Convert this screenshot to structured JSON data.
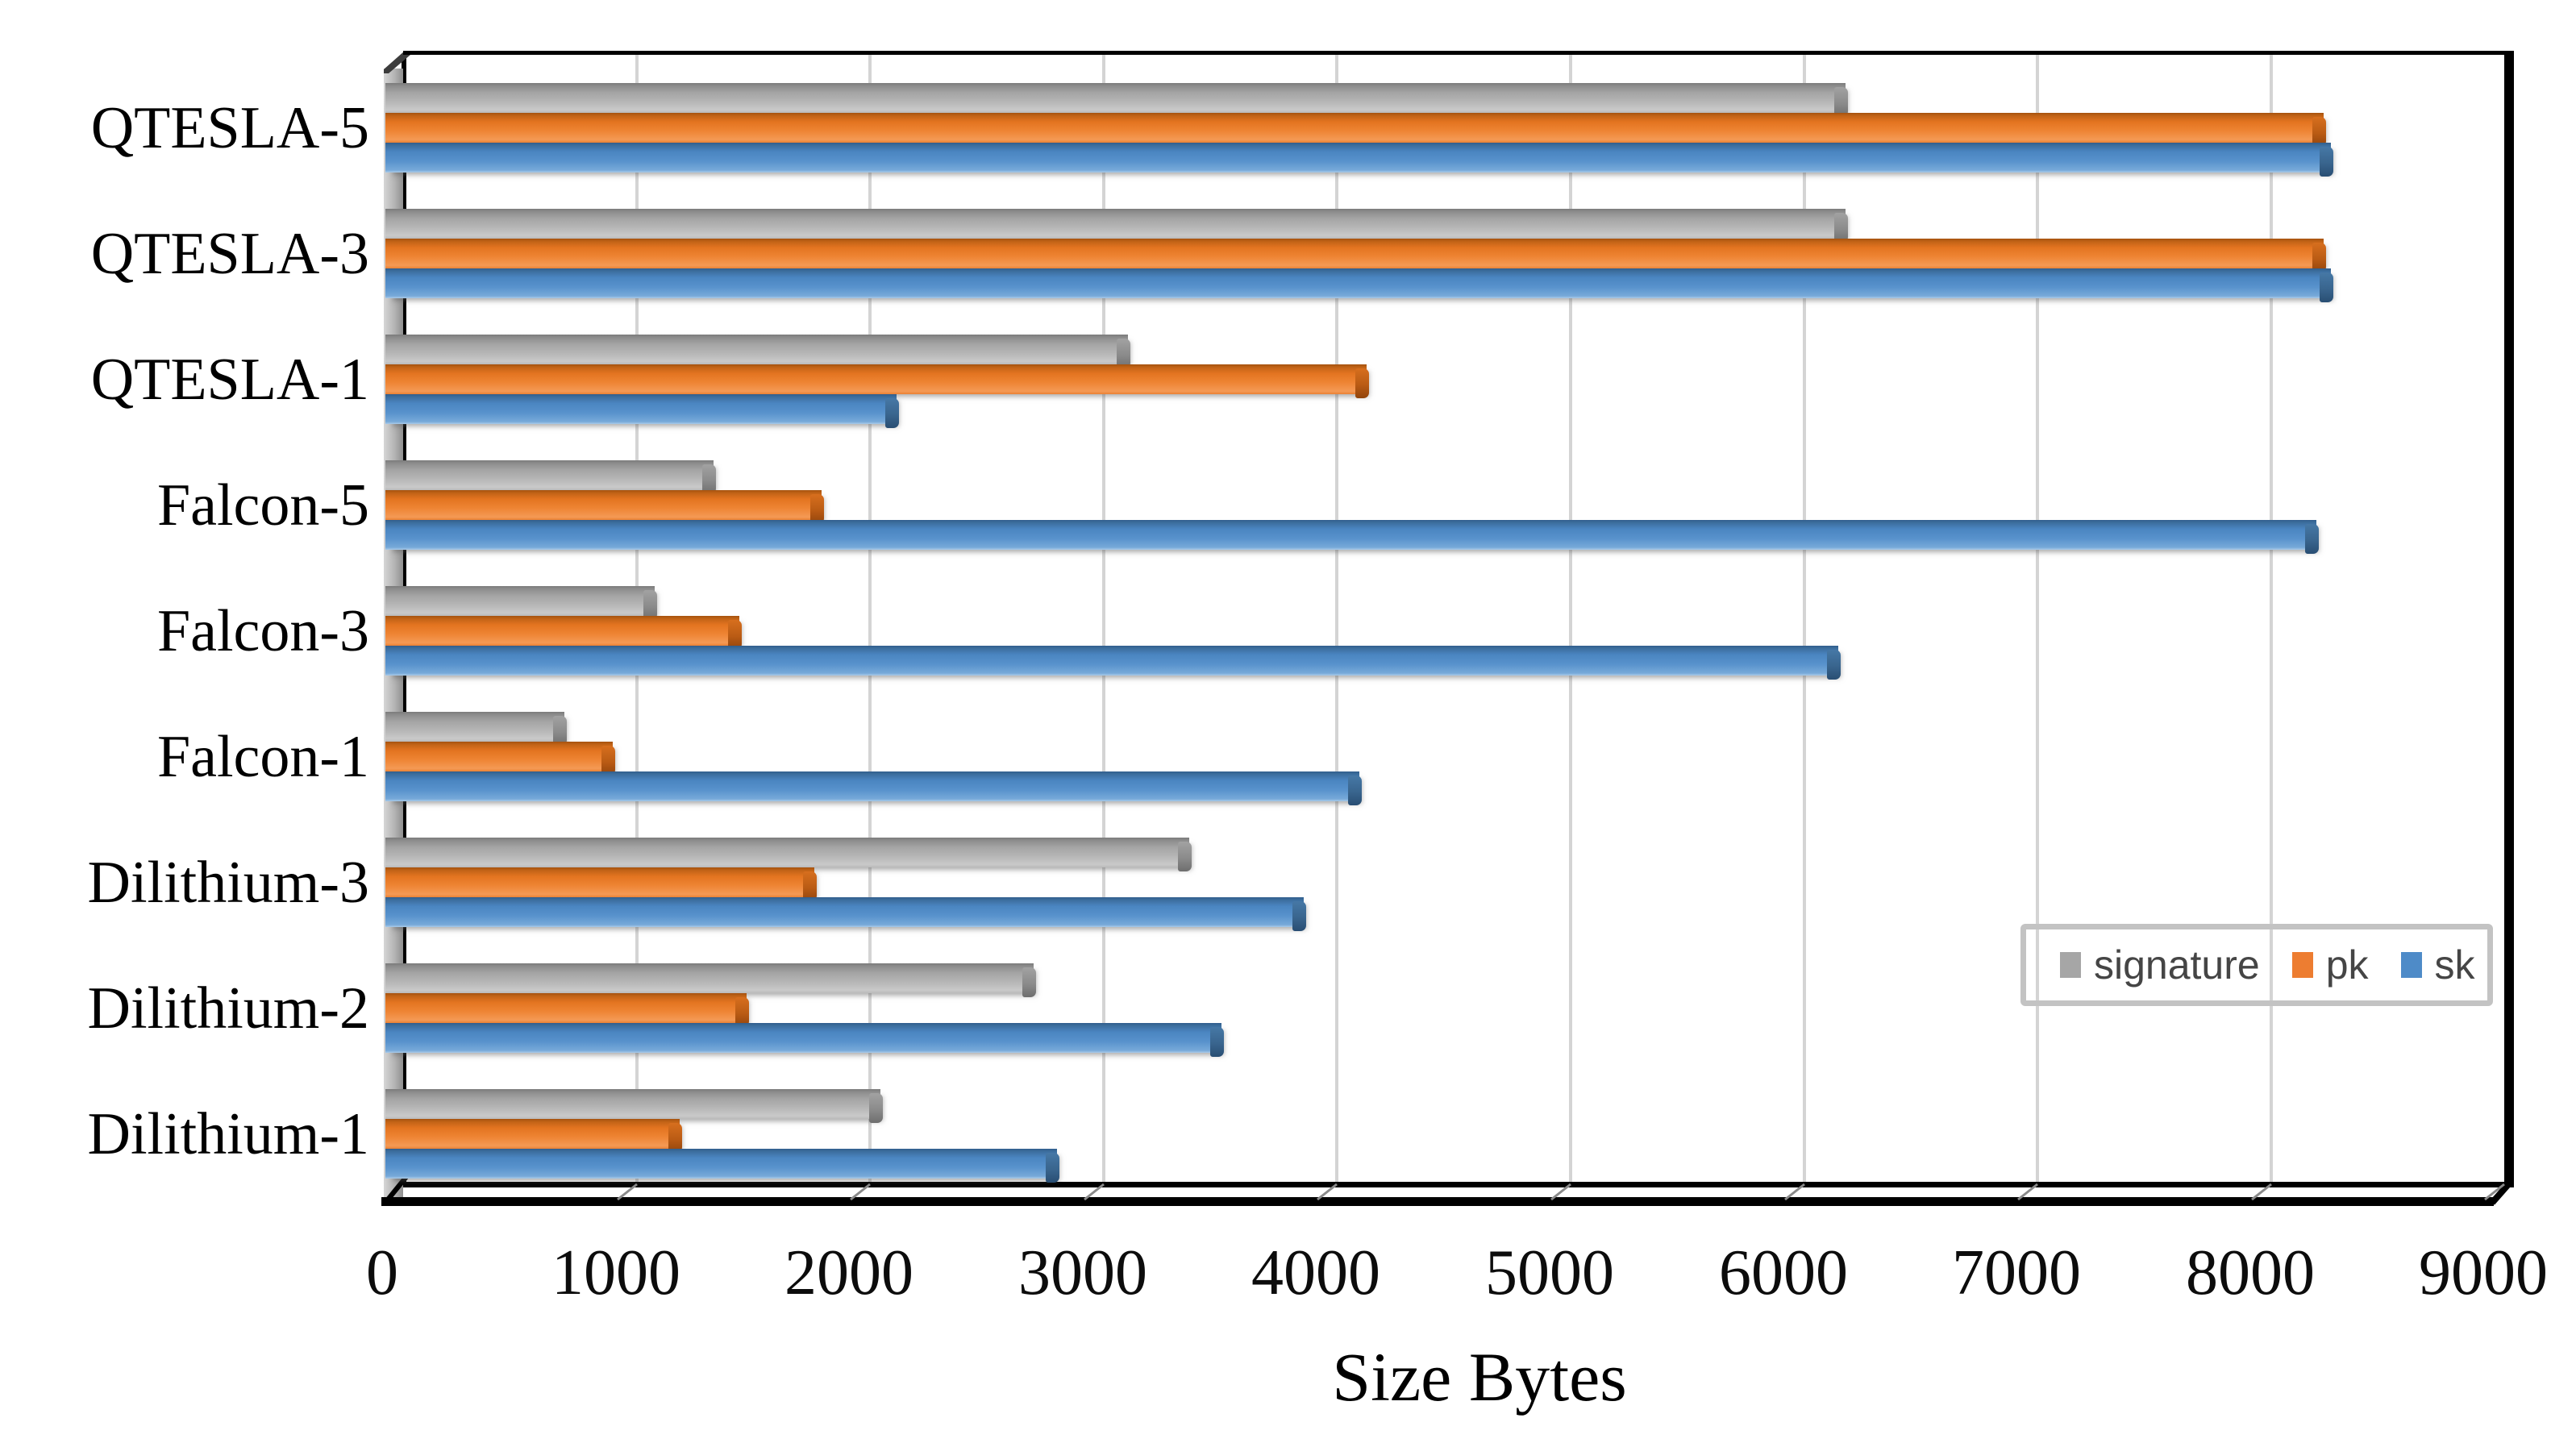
{
  "chart_data": {
    "type": "bar",
    "orientation": "horizontal",
    "title": "",
    "xlabel": "Size Bytes",
    "ylabel": "",
    "categories": [
      "QTESLA-5",
      "QTESLA-3",
      "QTESLA-1",
      "Falcon-5",
      "Falcon-3",
      "Falcon-1",
      "Dilithium-3",
      "Dilithium-2",
      "Dilithium-1"
    ],
    "series": [
      {
        "name": "signature",
        "color": "#a6a6a6",
        "values": [
          6176,
          6176,
          3104,
          1330,
          1077,
          690,
          3366,
          2701,
          2044
        ]
      },
      {
        "name": "pk",
        "color": "#ed7d31",
        "values": [
          8224,
          8224,
          4128,
          1793,
          1441,
          897,
          1760,
          1472,
          1184
        ]
      },
      {
        "name": "sk",
        "color": "#4e8bc8",
        "values": [
          8256,
          8256,
          2112,
          8193,
          6145,
          4097,
          3856,
          3504,
          2800
        ]
      }
    ],
    "x_ticks": [
      0,
      1000,
      2000,
      3000,
      4000,
      5000,
      6000,
      7000,
      8000,
      9000
    ],
    "xlim": [
      0,
      9000
    ],
    "grid": true,
    "gridline_color": "#d4d4d4",
    "legend_position": "inside-right",
    "frame_color": "#000000",
    "legend_border_color": "#c3c3c3"
  }
}
